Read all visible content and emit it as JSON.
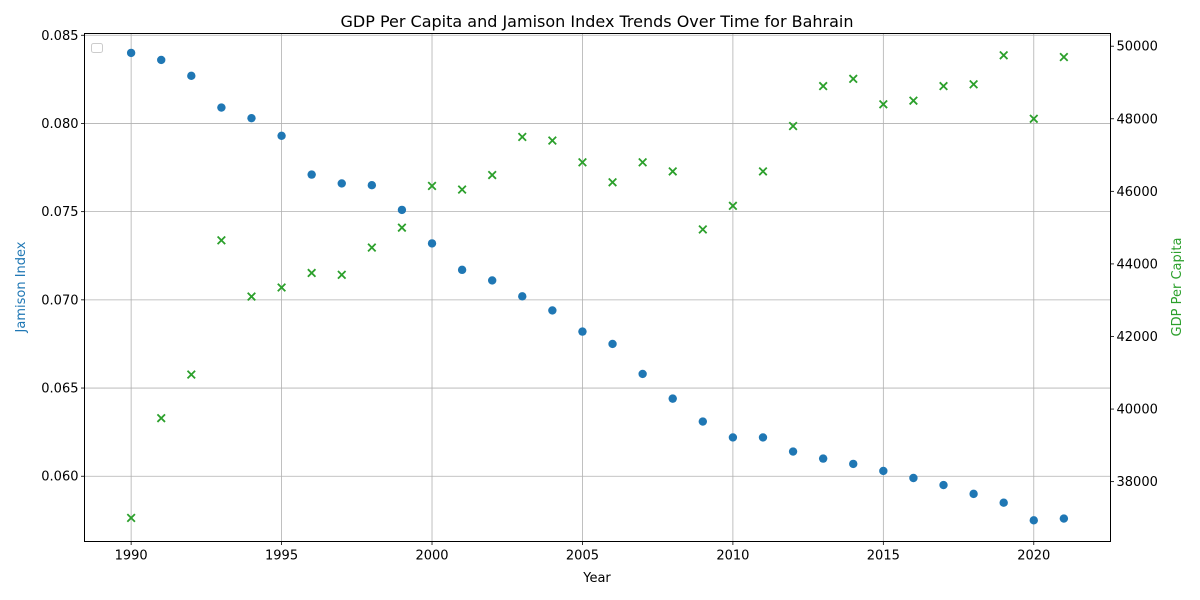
{
  "chart_data": {
    "type": "scatter",
    "title": "GDP Per Capita and Jamison Index Trends Over Time for Bahrain",
    "xlabel": "Year",
    "ylabel_left": "Jamison Index",
    "ylabel_right": "GDP Per Capita",
    "xlim": [
      1988.45,
      2022.55
    ],
    "ylim_left": [
      0.0563,
      0.0851
    ],
    "ylim_right": [
      36350,
      50350
    ],
    "x_ticks": [
      1990,
      1995,
      2000,
      2005,
      2010,
      2015,
      2020
    ],
    "y_left_ticks": [
      0.06,
      0.065,
      0.07,
      0.075,
      0.08,
      0.085
    ],
    "y_right_ticks": [
      38000,
      40000,
      42000,
      44000,
      46000,
      48000,
      50000
    ],
    "grid": true,
    "legend": "upper-left (empty)",
    "colors": {
      "jamison": "#1f77b4",
      "gdp": "#2ca02c"
    },
    "x": [
      1990,
      1991,
      1992,
      1993,
      1994,
      1995,
      1996,
      1997,
      1998,
      1999,
      2000,
      2001,
      2002,
      2003,
      2004,
      2005,
      2006,
      2007,
      2008,
      2009,
      2010,
      2011,
      2012,
      2013,
      2014,
      2015,
      2016,
      2017,
      2018,
      2019,
      2020,
      2021
    ],
    "series": [
      {
        "axis": "left",
        "marker": "circle",
        "values": [
          0.084,
          0.0836,
          0.0827,
          0.0809,
          0.0803,
          0.0793,
          0.0771,
          0.0766,
          0.0765,
          0.0751,
          0.0732,
          0.0717,
          0.0711,
          0.0702,
          0.0694,
          0.0682,
          0.0675,
          0.0658,
          0.0644,
          0.0631,
          0.0622,
          0.0622,
          0.0614,
          0.061,
          0.0607,
          0.0603,
          0.0599,
          0.0595,
          0.059,
          0.0585,
          0.0575,
          0.0576
        ]
      },
      {
        "axis": "right",
        "marker": "x",
        "values": [
          37000,
          39750,
          40950,
          44650,
          43100,
          43350,
          43750,
          43700,
          44450,
          45000,
          46150,
          46050,
          46450,
          47500,
          47400,
          46800,
          46250,
          46800,
          46550,
          44950,
          45600,
          46550,
          47800,
          48900,
          49100,
          48400,
          48500,
          48900,
          48950,
          49750,
          48000,
          49700
        ]
      }
    ]
  }
}
